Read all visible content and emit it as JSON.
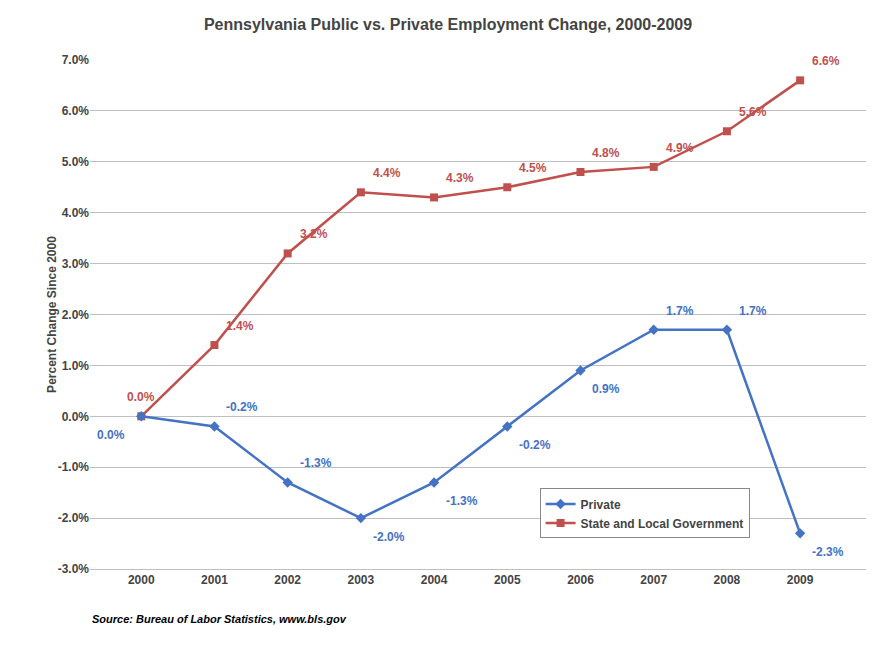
{
  "chart_data": {
    "type": "line",
    "title": "Pennsylvania Public vs. Private Employment Change, 2000-2009",
    "ylabel": "Percent Change Since 2000",
    "annotations": [
      "Source: Bureau of Labor Statistics, www.bls.gov"
    ],
    "x": [
      2000,
      2001,
      2002,
      2003,
      2004,
      2005,
      2006,
      2007,
      2008,
      2009
    ],
    "xlim": [
      1999.3,
      2009.9
    ],
    "xticks": [
      2000,
      2001,
      2002,
      2003,
      2004,
      2005,
      2006,
      2007,
      2008,
      2009
    ],
    "ylim": [
      -3.0,
      7.0
    ],
    "yticks": [
      {
        "value": -3.0,
        "label": "-3.0%"
      },
      {
        "value": -2.0,
        "label": "-2.0%"
      },
      {
        "value": -1.0,
        "label": "-1.0%"
      },
      {
        "value": 0.0,
        "label": "0.0%"
      },
      {
        "value": 1.0,
        "label": "1.0%"
      },
      {
        "value": 2.0,
        "label": "2.0%"
      },
      {
        "value": 3.0,
        "label": "3.0%"
      },
      {
        "value": 4.0,
        "label": "4.0%"
      },
      {
        "value": 5.0,
        "label": "5.0%"
      },
      {
        "value": 6.0,
        "label": "6.0%"
      },
      {
        "value": 7.0,
        "label": "7.0%"
      }
    ],
    "grid": true,
    "legend": "lower right",
    "data_labels": true,
    "series": [
      {
        "name": "State and Local Government",
        "color": "#C0504D",
        "marker": "square",
        "line_style": "solid",
        "values": [
          0.0,
          1.4,
          3.2,
          4.4,
          4.3,
          4.5,
          4.8,
          4.9,
          5.6,
          6.6
        ],
        "value_labels": [
          "0.0%",
          "1.4%",
          "3.2%",
          "4.4%",
          "4.3%",
          "4.5%",
          "4.8%",
          "4.9%",
          "5.6%",
          "6.6%"
        ]
      },
      {
        "name": "Private",
        "color": "#4472C4",
        "marker": "diamond",
        "line_style": "solid",
        "values": [
          0.0,
          -0.2,
          -1.3,
          -2.0,
          -1.3,
          -0.2,
          0.9,
          1.7,
          1.7,
          -2.3
        ],
        "value_labels": [
          "0.0%",
          "-0.2%",
          "-1.3%",
          "-2.0%",
          "-1.3%",
          "-0.2%",
          "0.9%",
          "1.7%",
          "1.7%",
          "-2.3%"
        ]
      }
    ]
  }
}
